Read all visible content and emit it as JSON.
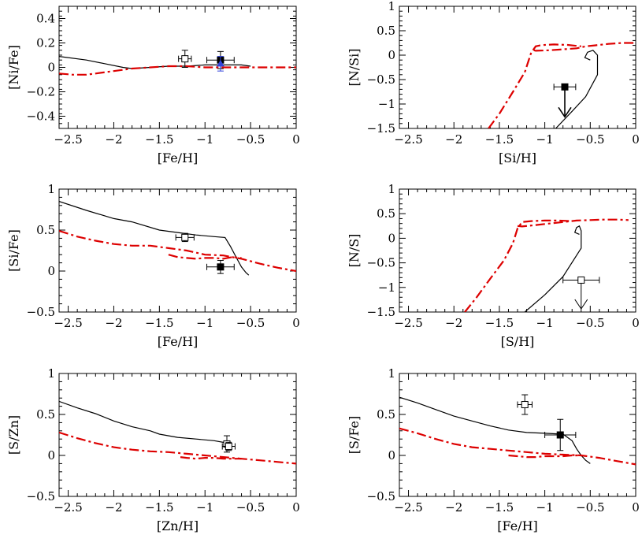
{
  "colors": {
    "axis": "#000000",
    "model_solid": "#000000",
    "model_dashdot": "#dd0000",
    "blue_point": "#3344dd"
  },
  "chart_data": [
    {
      "id": "ni_fe",
      "type": "line",
      "xlabel": "[Fe/H]",
      "ylabel": "[Ni/Fe]",
      "xlim": [
        -2.6,
        0
      ],
      "ylim": [
        -0.5,
        0.5
      ],
      "xticks": [
        -2.5,
        -2,
        -1.5,
        -1,
        -0.5,
        0
      ],
      "yticks": [
        -0.4,
        -0.2,
        0,
        0.2,
        0.4
      ],
      "xtick_labels": [
        "−2.5",
        "−2",
        "−1.5",
        "−1",
        "−0.5",
        "0"
      ],
      "ytick_labels": [
        "−0.4",
        "−0.2",
        "0",
        "0.2",
        "0.4"
      ],
      "series": [
        {
          "style": "solid",
          "x": [
            -2.6,
            -2.3,
            -2.1,
            -1.9,
            -1.8,
            -1.6,
            -1.4,
            -1.2,
            -1.0,
            -0.8,
            -0.6,
            -0.5
          ],
          "y": [
            0.09,
            0.06,
            0.03,
            0.0,
            -0.01,
            0.0,
            0.01,
            0.01,
            0.02,
            0.02,
            0.02,
            0.01
          ]
        },
        {
          "style": "dashdot",
          "x": [
            -2.6,
            -2.45,
            -2.3,
            -2.2,
            -2.1,
            -2.0,
            -1.9,
            -1.8,
            -1.6,
            -1.4,
            -1.2,
            -1.0,
            -0.8,
            -0.6,
            -0.4,
            -0.2,
            0.0
          ],
          "y": [
            -0.05,
            -0.06,
            -0.06,
            -0.05,
            -0.04,
            -0.03,
            -0.02,
            -0.01,
            0.0,
            0.01,
            0.01,
            0.0,
            0.0,
            0.0,
            0.0,
            0.0,
            0.0
          ]
        }
      ],
      "points": [
        {
          "x": -1.22,
          "y": 0.07,
          "xerr": 0.07,
          "yerr": 0.07,
          "filled": false
        },
        {
          "x": -0.83,
          "y": 0.06,
          "xerr": 0.15,
          "yerr": 0.07,
          "filled": true
        },
        {
          "x": -0.83,
          "y": 0.03,
          "xerr": 0,
          "yerr": 0.06,
          "filled": true,
          "marker": "triangle",
          "color": "blue"
        }
      ]
    },
    {
      "id": "n_si",
      "type": "line",
      "xlabel": "[Si/H]",
      "ylabel": "[N/Si]",
      "xlim": [
        -2.6,
        0
      ],
      "ylim": [
        -1.5,
        1
      ],
      "xticks": [
        -2.5,
        -2,
        -1.5,
        -1,
        -0.5,
        0
      ],
      "yticks": [
        -1.5,
        -1,
        -0.5,
        0,
        0.5,
        1
      ],
      "xtick_labels": [
        "−2.5",
        "−2",
        "−1.5",
        "−1",
        "−0.5",
        "0"
      ],
      "ytick_labels": [
        "−1.5",
        "−1",
        "−0.5",
        "0",
        "0.5",
        "1"
      ],
      "series": [
        {
          "style": "solid",
          "x": [
            -0.88,
            -0.7,
            -0.55,
            -0.42,
            -0.42,
            -0.47,
            -0.53,
            -0.56,
            -0.5
          ],
          "y": [
            -1.5,
            -1.15,
            -0.85,
            -0.4,
            0.0,
            0.1,
            0.06,
            -0.05,
            -0.1
          ]
        },
        {
          "style": "dashdot",
          "x": [
            -1.62,
            -1.5,
            -1.35,
            -1.22,
            -1.15,
            -1.1,
            -1.05,
            -1.0,
            -0.9,
            -0.75,
            -0.6
          ],
          "y": [
            -1.5,
            -1.2,
            -0.75,
            -0.35,
            0.05,
            0.18,
            0.2,
            0.21,
            0.22,
            0.21,
            0.18
          ]
        },
        {
          "style": "dashdot",
          "x": [
            -1.12,
            -1.1,
            -0.95,
            -0.8,
            -0.65,
            -0.55,
            -0.45,
            -0.3,
            -0.15,
            -0.02
          ],
          "y": [
            0.1,
            0.09,
            0.1,
            0.12,
            0.14,
            0.18,
            0.2,
            0.23,
            0.25,
            0.25
          ]
        }
      ],
      "points": [
        {
          "x": -0.78,
          "y": -0.65,
          "xerr": 0.12,
          "yerr": 0.06,
          "filled": true,
          "upper_limit": true
        }
      ]
    },
    {
      "id": "si_fe",
      "type": "line",
      "xlabel": "[Fe/H]",
      "ylabel": "[Si/Fe]",
      "xlim": [
        -2.6,
        0
      ],
      "ylim": [
        -0.5,
        1
      ],
      "xticks": [
        -2.5,
        -2,
        -1.5,
        -1,
        -0.5,
        0
      ],
      "yticks": [
        -0.5,
        0,
        0.5,
        1
      ],
      "xtick_labels": [
        "−2.5",
        "−2",
        "−1.5",
        "−1",
        "−0.5",
        "0"
      ],
      "ytick_labels": [
        "−0.5",
        "0",
        "0.5",
        "1"
      ],
      "series": [
        {
          "style": "solid",
          "x": [
            -2.6,
            -2.3,
            -2.0,
            -1.8,
            -1.5,
            -1.3,
            -1.1,
            -0.9,
            -0.78,
            -0.72,
            -0.65,
            -0.6,
            -0.55,
            -0.52
          ],
          "y": [
            0.85,
            0.74,
            0.64,
            0.6,
            0.5,
            0.47,
            0.44,
            0.42,
            0.41,
            0.3,
            0.15,
            0.05,
            -0.02,
            -0.05
          ]
        },
        {
          "style": "dashdot",
          "x": [
            -2.6,
            -2.4,
            -2.2,
            -2.0,
            -1.8,
            -1.6,
            -1.4,
            -1.2,
            -1.0,
            -0.8,
            -0.6,
            -0.4,
            -0.2,
            0.0
          ],
          "y": [
            0.49,
            0.42,
            0.37,
            0.33,
            0.31,
            0.31,
            0.28,
            0.25,
            0.2,
            0.19,
            0.15,
            0.09,
            0.04,
            0.0
          ]
        },
        {
          "style": "dashdot",
          "x": [
            -1.4,
            -1.3,
            -1.2,
            -1.1,
            -1.0,
            -0.9,
            -0.8,
            -0.7,
            -0.6
          ],
          "y": [
            0.2,
            0.17,
            0.16,
            0.15,
            0.16,
            0.16,
            0.15,
            0.17,
            0.16
          ]
        }
      ],
      "points": [
        {
          "x": -1.22,
          "y": 0.41,
          "xerr": 0.1,
          "yerr": 0.05,
          "filled": false
        },
        {
          "x": -0.83,
          "y": 0.05,
          "xerr": 0.15,
          "yerr": 0.08,
          "filled": true
        }
      ]
    },
    {
      "id": "n_s",
      "type": "line",
      "xlabel": "[S/H]",
      "ylabel": "[N/S]",
      "xlim": [
        -2.6,
        0
      ],
      "ylim": [
        -1.5,
        1
      ],
      "xticks": [
        -2.5,
        -2,
        -1.5,
        -1,
        -0.5,
        0
      ],
      "yticks": [
        -1.5,
        -1,
        -0.5,
        0,
        0.5,
        1
      ],
      "xtick_labels": [
        "−2.5",
        "−2",
        "−1.5",
        "−1",
        "−0.5",
        "0"
      ],
      "ytick_labels": [
        "−1.5",
        "−1",
        "−0.5",
        "0",
        "0.5",
        "1"
      ],
      "series": [
        {
          "style": "solid",
          "x": [
            -1.22,
            -1.0,
            -0.8,
            -0.6,
            -0.6,
            -0.62,
            -0.65,
            -0.67,
            -0.62
          ],
          "y": [
            -1.5,
            -1.15,
            -0.78,
            -0.2,
            0.15,
            0.25,
            0.22,
            0.12,
            0.08
          ]
        },
        {
          "style": "dashdot",
          "x": [
            -1.88,
            -1.75,
            -1.6,
            -1.45,
            -1.35,
            -1.3,
            -1.25,
            -1.15,
            -1.0,
            -0.85,
            -0.7
          ],
          "y": [
            -1.5,
            -1.2,
            -0.82,
            -0.45,
            -0.1,
            0.2,
            0.33,
            0.35,
            0.36,
            0.36,
            0.35
          ]
        },
        {
          "style": "dashdot",
          "x": [
            -1.3,
            -1.25,
            -1.1,
            -0.95,
            -0.8,
            -0.65,
            -0.5,
            -0.35,
            -0.2,
            -0.08
          ],
          "y": [
            0.25,
            0.24,
            0.27,
            0.3,
            0.33,
            0.36,
            0.37,
            0.38,
            0.38,
            0.37
          ]
        }
      ],
      "points": [
        {
          "x": -0.6,
          "y": -0.85,
          "xerr": 0.2,
          "yerr": 0,
          "filled": false,
          "upper_limit": true
        }
      ]
    },
    {
      "id": "s_zn",
      "type": "line",
      "xlabel": "[Zn/H]",
      "ylabel": "[S/Zn]",
      "xlim": [
        -2.6,
        0
      ],
      "ylim": [
        -0.5,
        1
      ],
      "xticks": [
        -2.5,
        -2,
        -1.5,
        -1,
        -0.5,
        0
      ],
      "yticks": [
        -0.5,
        0,
        0.5,
        1
      ],
      "xtick_labels": [
        "−2.5",
        "−2",
        "−1.5",
        "−1",
        "−0.5",
        "0"
      ],
      "ytick_labels": [
        "−0.5",
        "0",
        "0.5",
        "1"
      ],
      "series": [
        {
          "style": "solid",
          "x": [
            -2.6,
            -2.4,
            -2.2,
            -2.0,
            -1.8,
            -1.6,
            -1.5,
            -1.3,
            -1.1,
            -0.9,
            -0.8,
            -0.72
          ],
          "y": [
            0.66,
            0.58,
            0.51,
            0.42,
            0.35,
            0.3,
            0.26,
            0.22,
            0.2,
            0.18,
            0.16,
            0.14
          ]
        },
        {
          "style": "dashdot",
          "x": [
            -2.6,
            -2.4,
            -2.2,
            -2.0,
            -1.8,
            -1.6,
            -1.4,
            -1.2,
            -1.0,
            -0.8,
            -0.6,
            -0.4,
            -0.2,
            0.0
          ],
          "y": [
            0.28,
            0.21,
            0.15,
            0.1,
            0.07,
            0.05,
            0.04,
            0.02,
            0.0,
            -0.02,
            -0.04,
            -0.06,
            -0.08,
            -0.1
          ]
        },
        {
          "style": "dashdot",
          "x": [
            -1.27,
            -1.2,
            -1.1,
            -1.0,
            -0.9,
            -0.8,
            -0.7,
            -0.6
          ],
          "y": [
            -0.02,
            -0.03,
            -0.04,
            -0.03,
            -0.03,
            -0.04,
            -0.04,
            -0.04
          ]
        }
      ],
      "points": [
        {
          "x": -0.76,
          "y": 0.14,
          "xerr": 0,
          "yerr": 0.1,
          "filled": false
        },
        {
          "x": -0.74,
          "y": 0.11,
          "xerr": 0.07,
          "yerr": 0.05,
          "filled": false
        }
      ]
    },
    {
      "id": "s_fe",
      "type": "line",
      "xlabel": "[Fe/H]",
      "ylabel": "[S/Fe]",
      "xlim": [
        -2.6,
        0
      ],
      "ylim": [
        -0.5,
        1
      ],
      "xticks": [
        -2.5,
        -2,
        -1.5,
        -1,
        -0.5,
        0
      ],
      "yticks": [
        -0.5,
        0,
        0.5,
        1
      ],
      "xtick_labels": [
        "−2.5",
        "−2",
        "−1.5",
        "−1",
        "−0.5",
        "0"
      ],
      "ytick_labels": [
        "−0.5",
        "0",
        "0.5",
        "1"
      ],
      "series": [
        {
          "style": "solid",
          "x": [
            -2.6,
            -2.4,
            -2.2,
            -2.0,
            -1.8,
            -1.6,
            -1.4,
            -1.2,
            -1.0,
            -0.8,
            -0.7,
            -0.65,
            -0.6,
            -0.55,
            -0.5
          ],
          "y": [
            0.71,
            0.64,
            0.56,
            0.48,
            0.42,
            0.36,
            0.31,
            0.28,
            0.27,
            0.26,
            0.18,
            0.08,
            0.0,
            -0.06,
            -0.1
          ]
        },
        {
          "style": "dashdot",
          "x": [
            -2.6,
            -2.4,
            -2.2,
            -2.0,
            -1.8,
            -1.6,
            -1.4,
            -1.2,
            -1.0,
            -0.8,
            -0.6,
            -0.4,
            -0.2,
            0.0
          ],
          "y": [
            0.33,
            0.27,
            0.2,
            0.14,
            0.1,
            0.08,
            0.06,
            0.04,
            0.02,
            0.01,
            0.0,
            -0.03,
            -0.07,
            -0.11
          ]
        },
        {
          "style": "dashdot",
          "x": [
            -1.4,
            -1.3,
            -1.2,
            -1.1,
            -1.0,
            -0.9,
            -0.8,
            -0.7,
            -0.6
          ],
          "y": [
            0.0,
            -0.01,
            -0.02,
            -0.02,
            -0.01,
            -0.01,
            -0.01,
            0.0,
            0.0
          ]
        }
      ],
      "points": [
        {
          "x": -1.22,
          "y": 0.62,
          "xerr": 0.08,
          "yerr": 0.12,
          "filled": false
        },
        {
          "x": -0.83,
          "y": 0.25,
          "xerr": 0.17,
          "yerr": 0.19,
          "filled": true
        }
      ]
    }
  ]
}
